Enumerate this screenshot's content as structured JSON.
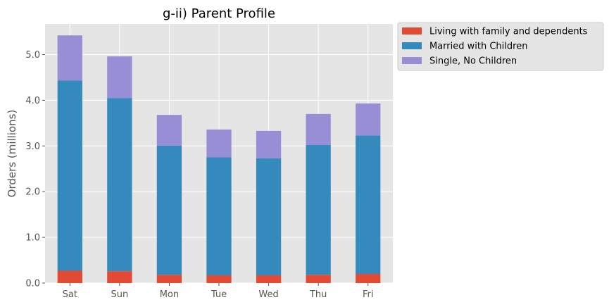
{
  "chart_data": {
    "type": "bar",
    "stacked": true,
    "title": "g-ii) Parent Profile",
    "xlabel": "",
    "ylabel": "Orders (millions)",
    "categories": [
      "Sat",
      "Sun",
      "Mon",
      "Tue",
      "Wed",
      "Thu",
      "Fri"
    ],
    "series": [
      {
        "name": "Living with family and dependents",
        "color": "#E24A33",
        "values": [
          0.27,
          0.26,
          0.18,
          0.17,
          0.17,
          0.18,
          0.2
        ]
      },
      {
        "name": "Married with Children",
        "color": "#348ABD",
        "values": [
          4.16,
          3.79,
          2.83,
          2.58,
          2.56,
          2.84,
          3.03
        ]
      },
      {
        "name": "Single, No Children",
        "color": "#988ED5",
        "values": [
          0.99,
          0.91,
          0.67,
          0.61,
          0.6,
          0.68,
          0.7
        ]
      }
    ],
    "ylim": [
      0,
      5.67
    ],
    "yticks": [
      0.0,
      1.0,
      2.0,
      3.0,
      4.0,
      5.0
    ],
    "ytick_labels": [
      "0.0",
      "1.0",
      "2.0",
      "3.0",
      "4.0",
      "5.0"
    ],
    "grid": true,
    "legend_position": "outside-top-right",
    "style": {
      "background": "#E5E5E5",
      "grid_color": "#FFFFFF"
    }
  }
}
